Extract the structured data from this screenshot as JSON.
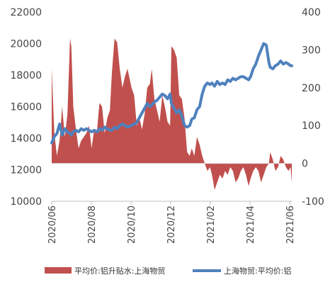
{
  "chart_data": {
    "type": "bar+line",
    "title": "",
    "x_ticks": [
      "2020/06",
      "2020/08",
      "2020/10",
      "2020/12",
      "2021/02",
      "2021/04",
      "2021/06"
    ],
    "y_left": {
      "range": [
        10000,
        22000
      ],
      "ticks": [
        "10000",
        "12000",
        "14000",
        "16000",
        "18000",
        "20000",
        "22000"
      ]
    },
    "y_right": {
      "range": [
        -100,
        400
      ],
      "ticks": [
        "-100",
        "0",
        "100",
        "200",
        "300",
        "400"
      ]
    },
    "grid": false,
    "legend_position": "bottom",
    "series": [
      {
        "name": "平均价:铝升贴水:上海物贸",
        "kind": "area",
        "axis": "right",
        "color": "#C0504D",
        "x": [
          "2020-06-01",
          "2020-06-05",
          "2020-06-09",
          "2020-06-13",
          "2020-06-17",
          "2020-06-21",
          "2020-06-25",
          "2020-06-29",
          "2020-07-01",
          "2020-07-04",
          "2020-07-08",
          "2020-07-12",
          "2020-07-16",
          "2020-07-20",
          "2020-07-24",
          "2020-07-28",
          "2020-08-01",
          "2020-08-05",
          "2020-08-09",
          "2020-08-13",
          "2020-08-17",
          "2020-08-21",
          "2020-08-25",
          "2020-08-29",
          "2020-09-01",
          "2020-09-05",
          "2020-09-09",
          "2020-09-13",
          "2020-09-17",
          "2020-09-21",
          "2020-09-25",
          "2020-10-01",
          "2020-10-05",
          "2020-10-09",
          "2020-10-13",
          "2020-10-17",
          "2020-10-21",
          "2020-10-25",
          "2020-10-29",
          "2020-11-01",
          "2020-11-05",
          "2020-11-09",
          "2020-11-13",
          "2020-11-17",
          "2020-11-21",
          "2020-11-25",
          "2020-11-29",
          "2020-12-01",
          "2020-12-05",
          "2020-12-09",
          "2020-12-13",
          "2020-12-17",
          "2020-12-21",
          "2020-12-25",
          "2020-12-29",
          "2021-01-01",
          "2021-01-05",
          "2021-01-09",
          "2021-01-13",
          "2021-01-17",
          "2021-01-21",
          "2021-01-25",
          "2021-01-29",
          "2021-02-01",
          "2021-02-05",
          "2021-02-09",
          "2021-02-13",
          "2021-02-17",
          "2021-02-21",
          "2021-02-25",
          "2021-03-01",
          "2021-03-05",
          "2021-03-09",
          "2021-03-13",
          "2021-03-17",
          "2021-03-21",
          "2021-03-25",
          "2021-03-29",
          "2021-04-01",
          "2021-04-05",
          "2021-04-09",
          "2021-04-13",
          "2021-04-17",
          "2021-04-21",
          "2021-04-25",
          "2021-04-29",
          "2021-05-01",
          "2021-05-05",
          "2021-05-09",
          "2021-05-13",
          "2021-05-17",
          "2021-05-21",
          "2021-05-25",
          "2021-05-29",
          "2021-06-01",
          "2021-06-03"
        ],
        "values": [
          250,
          80,
          20,
          60,
          150,
          70,
          130,
          330,
          310,
          150,
          90,
          40,
          60,
          70,
          80,
          100,
          40,
          90,
          80,
          160,
          150,
          80,
          120,
          140,
          240,
          330,
          320,
          250,
          200,
          230,
          250,
          200,
          180,
          100,
          120,
          90,
          130,
          200,
          210,
          250,
          170,
          140,
          110,
          180,
          150,
          110,
          100,
          310,
          300,
          280,
          180,
          170,
          120,
          30,
          20,
          40,
          20,
          70,
          50,
          20,
          0,
          -20,
          -10,
          -30,
          -70,
          -50,
          -30,
          -40,
          -20,
          -30,
          -10,
          -20,
          -50,
          -40,
          -20,
          -10,
          -30,
          -60,
          -40,
          -20,
          -10,
          -20,
          -50,
          -30,
          -10,
          0,
          30,
          10,
          -20,
          -10,
          20,
          10,
          -10,
          -20,
          -10,
          -50
        ],
        "y_unit": "right axis"
      },
      {
        "name": "上海物贸:平均价:铝",
        "kind": "line",
        "axis": "left",
        "color": "#4F81BD",
        "x": [
          "2020-06-01",
          "2020-06-05",
          "2020-06-09",
          "2020-06-13",
          "2020-06-17",
          "2020-06-21",
          "2020-06-25",
          "2020-06-29",
          "2020-07-01",
          "2020-07-04",
          "2020-07-08",
          "2020-07-12",
          "2020-07-16",
          "2020-07-20",
          "2020-07-24",
          "2020-07-28",
          "2020-08-01",
          "2020-08-05",
          "2020-08-09",
          "2020-08-13",
          "2020-08-17",
          "2020-08-21",
          "2020-08-25",
          "2020-08-29",
          "2020-09-01",
          "2020-09-05",
          "2020-09-09",
          "2020-09-13",
          "2020-09-17",
          "2020-09-21",
          "2020-09-25",
          "2020-10-01",
          "2020-10-05",
          "2020-10-09",
          "2020-10-13",
          "2020-10-17",
          "2020-10-21",
          "2020-10-25",
          "2020-10-29",
          "2020-11-01",
          "2020-11-05",
          "2020-11-09",
          "2020-11-13",
          "2020-11-17",
          "2020-11-21",
          "2020-11-25",
          "2020-11-29",
          "2020-12-01",
          "2020-12-05",
          "2020-12-09",
          "2020-12-13",
          "2020-12-17",
          "2020-12-21",
          "2020-12-25",
          "2020-12-29",
          "2021-01-01",
          "2021-01-05",
          "2021-01-09",
          "2021-01-13",
          "2021-01-17",
          "2021-01-21",
          "2021-01-25",
          "2021-01-29",
          "2021-02-01",
          "2021-02-05",
          "2021-02-09",
          "2021-02-13",
          "2021-02-17",
          "2021-02-21",
          "2021-02-25",
          "2021-03-01",
          "2021-03-05",
          "2021-03-09",
          "2021-03-13",
          "2021-03-17",
          "2021-03-21",
          "2021-03-25",
          "2021-03-29",
          "2021-04-01",
          "2021-04-05",
          "2021-04-09",
          "2021-04-13",
          "2021-04-17",
          "2021-04-21",
          "2021-04-25",
          "2021-04-29",
          "2021-05-01",
          "2021-05-05",
          "2021-05-09",
          "2021-05-13",
          "2021-05-17",
          "2021-05-21",
          "2021-05-25",
          "2021-05-29",
          "2021-06-01",
          "2021-06-03"
        ],
        "values": [
          13700,
          14100,
          14300,
          14900,
          14200,
          14600,
          14400,
          14300,
          14200,
          14400,
          14500,
          14400,
          14600,
          14500,
          14600,
          14500,
          14400,
          14500,
          14400,
          14600,
          14500,
          14700,
          14600,
          14500,
          14500,
          14700,
          14600,
          14800,
          14900,
          14800,
          14700,
          14800,
          14900,
          15000,
          15300,
          15600,
          15900,
          16200,
          16000,
          16100,
          16300,
          16400,
          16600,
          16800,
          16700,
          16500,
          16800,
          16200,
          15900,
          15600,
          15800,
          15400,
          14800,
          14700,
          14800,
          15200,
          15300,
          15800,
          16000,
          16800,
          17300,
          17500,
          17400,
          17500,
          17300,
          17600,
          17400,
          17500,
          17400,
          17700,
          17600,
          17800,
          17700,
          17800,
          17900,
          17900,
          17800,
          17700,
          17900,
          18400,
          18700,
          19200,
          19600,
          20000,
          19900,
          18800,
          18500,
          18400,
          18600,
          18700,
          18900,
          18700,
          18800,
          18700,
          18600,
          18600
        ],
        "y_unit": "left axis"
      }
    ]
  }
}
